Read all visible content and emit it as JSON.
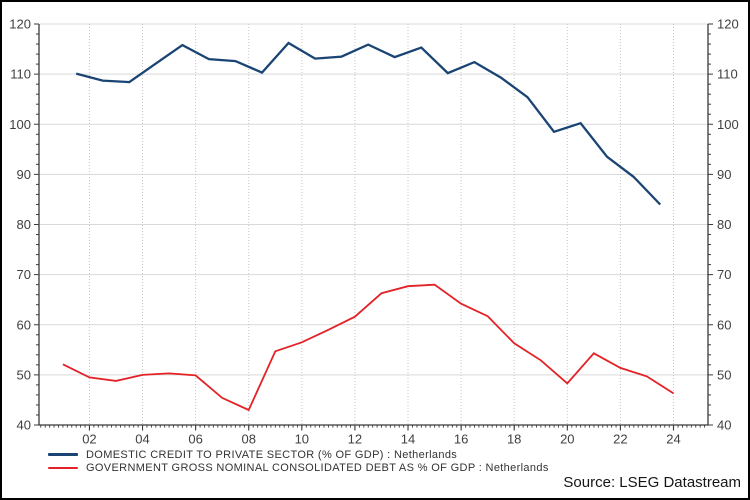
{
  "chart_data": {
    "type": "line",
    "title": "",
    "xlabel": "",
    "ylabel": "",
    "x_range": [
      2000.1,
      2025.3
    ],
    "ylim": [
      40,
      120
    ],
    "ytick_step": 10,
    "ytick_minor_step": 2,
    "xtick_minor_step_years": 0.1667,
    "grid": {
      "h_color": "#d9d9d9",
      "v_color": "#c4c4c4",
      "v_style": "dotted"
    },
    "axis_color": "#3a3a3a",
    "tick_label_color": "#404040",
    "xticks": {
      "years": [
        2002,
        2004,
        2006,
        2008,
        2010,
        2012,
        2014,
        2016,
        2018,
        2020,
        2022,
        2024
      ],
      "labels": [
        "02",
        "04",
        "06",
        "08",
        "10",
        "12",
        "14",
        "16",
        "18",
        "20",
        "22",
        "24"
      ]
    },
    "series": [
      {
        "name": "DOMESTIC CREDIT TO PRIVATE SECTOR (% OF GDP) : Netherlands",
        "color": "#1a4473",
        "line_width": 2.3,
        "x": [
          2001.5,
          2002.5,
          2003.5,
          2004.5,
          2005.5,
          2006.5,
          2007.5,
          2008.5,
          2009.5,
          2010.5,
          2011.5,
          2012.5,
          2013.5,
          2014.5,
          2015.5,
          2016.5,
          2017.5,
          2018.5,
          2019.5,
          2020.5,
          2021.5,
          2022.5,
          2023.5
        ],
        "values": [
          110.1,
          108.7,
          108.4,
          112.1,
          115.8,
          113.0,
          112.6,
          110.3,
          116.2,
          113.1,
          113.5,
          115.9,
          113.4,
          115.3,
          110.2,
          112.4,
          109.3,
          105.4,
          98.5,
          100.2,
          93.5,
          89.5,
          84.0
        ]
      },
      {
        "name": "GOVERNMENT GROSS NOMINAL CONSOLIDATED DEBT AS % OF GDP : Netherlands",
        "color": "#e32126",
        "line_width": 1.8,
        "x": [
          2001,
          2002,
          2003,
          2004,
          2005,
          2006,
          2007,
          2008,
          2009,
          2010,
          2011,
          2012,
          2013,
          2014,
          2015,
          2016,
          2017,
          2018,
          2019,
          2020,
          2021,
          2022,
          2023,
          2024
        ],
        "values": [
          52.1,
          49.5,
          48.8,
          50.0,
          50.3,
          49.9,
          45.4,
          43.0,
          54.7,
          56.5,
          59.0,
          61.6,
          66.3,
          67.7,
          68.0,
          64.2,
          61.7,
          56.3,
          52.9,
          48.3,
          54.3,
          51.4,
          49.7,
          46.3
        ]
      }
    ],
    "legend_position": "bottom-left",
    "source": "Source: LSEG Datastream"
  }
}
